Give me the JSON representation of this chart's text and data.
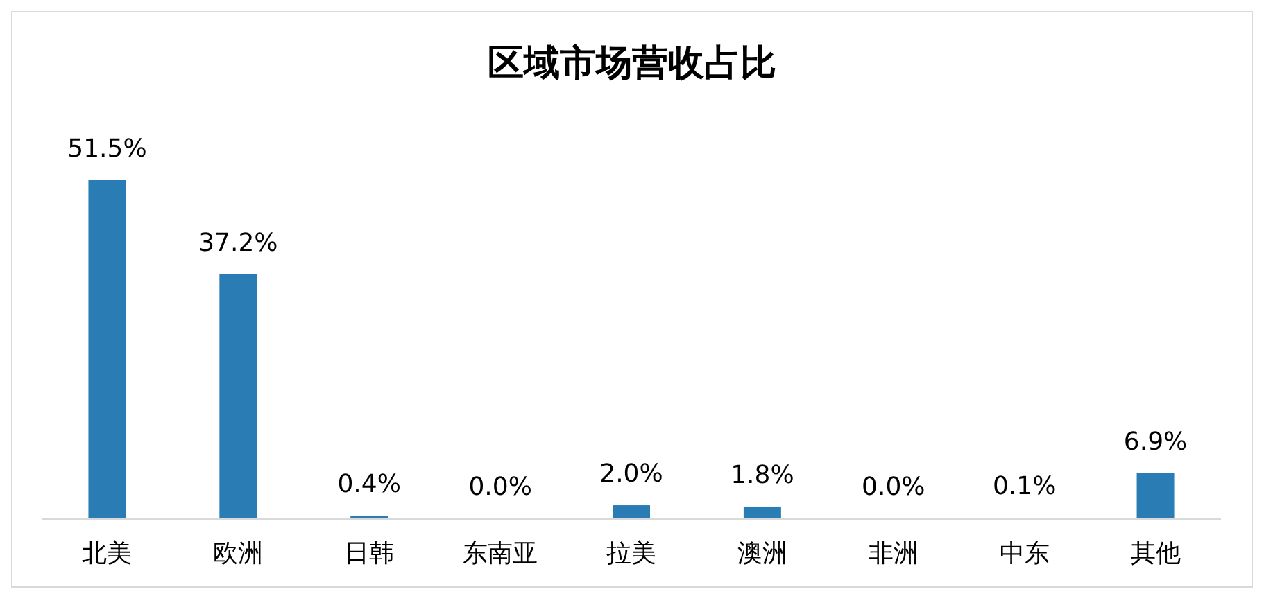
{
  "chart_data": {
    "type": "bar",
    "title": "区域市场营收占比",
    "categories": [
      "北美",
      "欧洲",
      "日韩",
      "东南亚",
      "拉美",
      "澳洲",
      "非洲",
      "中东",
      "其他"
    ],
    "values": [
      51.5,
      37.2,
      0.4,
      0.0,
      2.0,
      1.8,
      0.0,
      0.1,
      6.9
    ],
    "value_labels": [
      "51.5%",
      "37.2%",
      "0.4%",
      "0.0%",
      "2.0%",
      "1.8%",
      "0.0%",
      "0.1%",
      "6.9%"
    ],
    "color": "#2a7db4"
  }
}
